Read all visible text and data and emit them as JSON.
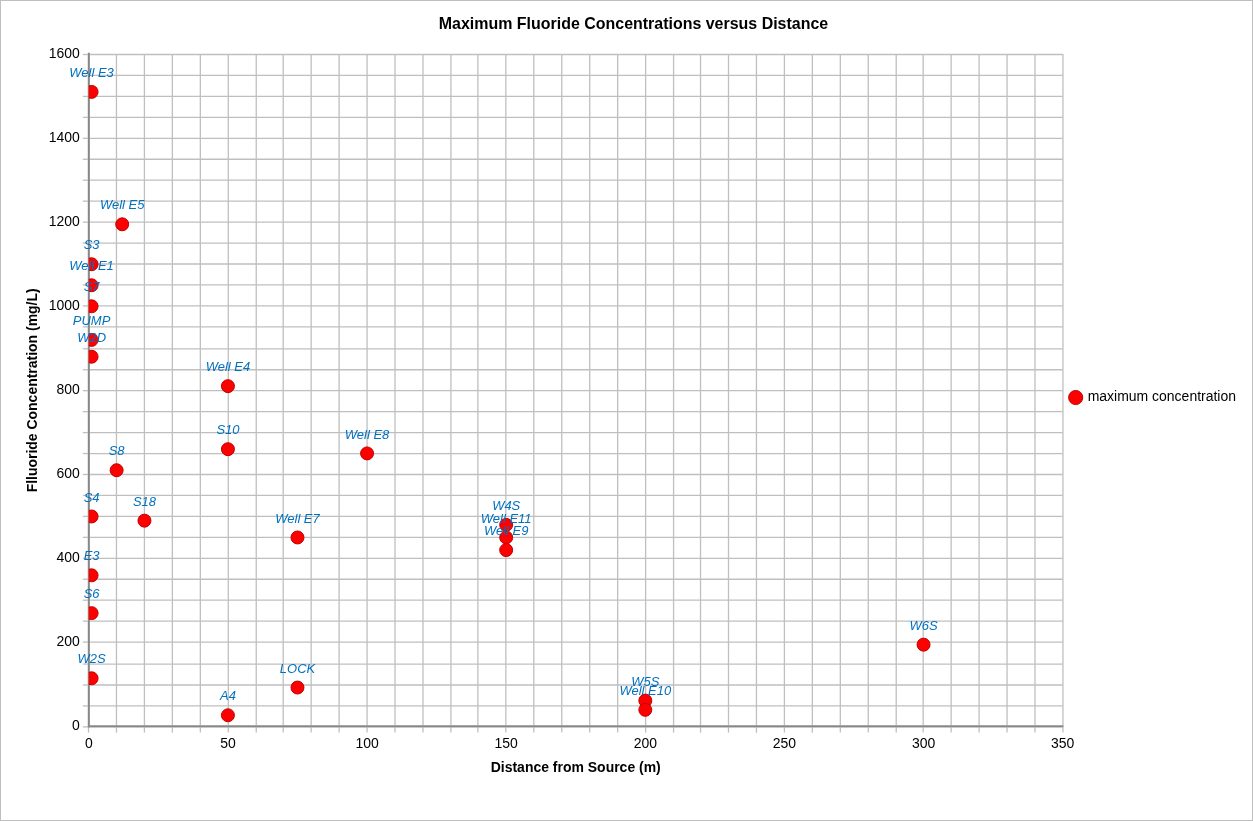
{
  "chart_data": {
    "type": "scatter",
    "title": "Maximum Fluoride Concentrations versus Distance",
    "xlabel": "Distance from Source (m)",
    "ylabel": "Flluoride Concentration (mg/L)",
    "x": [
      1,
      12,
      1,
      1,
      1,
      1,
      1,
      50,
      50,
      100,
      10,
      1,
      20,
      75,
      150,
      150,
      150,
      1,
      1,
      1,
      50,
      75,
      200,
      200,
      300
    ],
    "series": [
      {
        "name": "maximum concentration",
        "color": "#ff0000",
        "values": [
          1510,
          1195,
          1100,
          1050,
          1000,
          920,
          880,
          810,
          660,
          650,
          610,
          500,
          490,
          450,
          480,
          450,
          420,
          360,
          270,
          115,
          27,
          93,
          62,
          40,
          195
        ]
      }
    ],
    "annotations": [
      {
        "text": "Well E3",
        "x": 1,
        "y": 1510
      },
      {
        "text": "Well E5",
        "x": 12,
        "y": 1195
      },
      {
        "text": "S3",
        "x": 1,
        "y": 1100
      },
      {
        "text": "Well E1",
        "x": 1,
        "y": 1050
      },
      {
        "text": "S7",
        "x": 1,
        "y": 1000
      },
      {
        "text": "PUMP",
        "x": 1,
        "y": 920
      },
      {
        "text": "W2D",
        "x": 1,
        "y": 880
      },
      {
        "text": "Well E4",
        "x": 50,
        "y": 810
      },
      {
        "text": "S10",
        "x": 50,
        "y": 660
      },
      {
        "text": "Well E8",
        "x": 100,
        "y": 650
      },
      {
        "text": "S8",
        "x": 10,
        "y": 610
      },
      {
        "text": "S4",
        "x": 1,
        "y": 500
      },
      {
        "text": "S18",
        "x": 20,
        "y": 490
      },
      {
        "text": "Well E7",
        "x": 75,
        "y": 450
      },
      {
        "text": "W4S",
        "x": 150,
        "y": 480
      },
      {
        "text": "Well E11",
        "x": 150,
        "y": 450
      },
      {
        "text": "Well E9",
        "x": 150,
        "y": 420
      },
      {
        "text": "E3",
        "x": 1,
        "y": 360
      },
      {
        "text": "S6",
        "x": 1,
        "y": 270
      },
      {
        "text": "W2S",
        "x": 1,
        "y": 115
      },
      {
        "text": "A4",
        "x": 50,
        "y": 27
      },
      {
        "text": "LOCK",
        "x": 75,
        "y": 93
      },
      {
        "text": "W5S",
        "x": 200,
        "y": 62
      },
      {
        "text": "Well E10",
        "x": 200,
        "y": 40
      },
      {
        "text": "W6S",
        "x": 300,
        "y": 195
      }
    ],
    "xlim": [
      0,
      350
    ],
    "xticks": [
      0,
      {
        "value": 10,
        "label": null
      },
      {
        "value": 20,
        "label": null
      },
      {
        "value": 30,
        "label": null
      },
      {
        "value": 40,
        "label": null
      },
      50,
      {
        "value": 60,
        "label": null
      },
      {
        "value": 70,
        "label": null
      },
      {
        "value": 80,
        "label": null
      },
      {
        "value": 90,
        "label": null
      },
      100,
      {
        "value": 110,
        "label": null
      },
      {
        "value": 120,
        "label": null
      },
      {
        "value": 130,
        "label": null
      },
      {
        "value": 140,
        "label": null
      },
      150,
      {
        "value": 160,
        "label": null
      },
      {
        "value": 170,
        "label": null
      },
      {
        "value": 180,
        "label": null
      },
      {
        "value": 190,
        "label": null
      },
      200,
      {
        "value": 210,
        "label": null
      },
      {
        "value": 220,
        "label": null
      },
      {
        "value": 230,
        "label": null
      },
      {
        "value": 240,
        "label": null
      },
      250,
      {
        "value": 260,
        "label": null
      },
      {
        "value": 270,
        "label": null
      },
      {
        "value": 280,
        "label": null
      },
      {
        "value": 290,
        "label": null
      },
      300,
      {
        "value": 310,
        "label": null
      },
      {
        "value": 320,
        "label": null
      },
      {
        "value": 330,
        "label": null
      },
      {
        "value": 340,
        "label": null
      },
      350
    ],
    "ylim": [
      0,
      1600
    ],
    "yticks": [
      0,
      {
        "value": 50,
        "label": null
      },
      {
        "value": 100,
        "label": null
      },
      {
        "value": 150,
        "label": null
      },
      200,
      {
        "value": 250,
        "label": null
      },
      {
        "value": 300,
        "label": null
      },
      {
        "value": 350,
        "label": null
      },
      400,
      {
        "value": 450,
        "label": null
      },
      {
        "value": 500,
        "label": null
      },
      {
        "value": 550,
        "label": null
      },
      600,
      {
        "value": 650,
        "label": null
      },
      {
        "value": 700,
        "label": null
      },
      {
        "value": 750,
        "label": null
      },
      800,
      {
        "value": 850,
        "label": null
      },
      {
        "value": 900,
        "label": null
      },
      {
        "value": 950,
        "label": null
      },
      1000,
      {
        "value": 1050,
        "label": null
      },
      {
        "value": 1100,
        "label": null
      },
      {
        "value": 1150,
        "label": null
      },
      1200,
      {
        "value": 1250,
        "label": null
      },
      {
        "value": 1300,
        "label": null
      },
      {
        "value": 1350,
        "label": null
      },
      1400,
      {
        "value": 1450,
        "label": null
      },
      {
        "value": 1500,
        "label": null
      },
      {
        "value": 1550,
        "label": null
      },
      1600
    ],
    "grid": true,
    "legend": "right",
    "marker": "circle"
  }
}
